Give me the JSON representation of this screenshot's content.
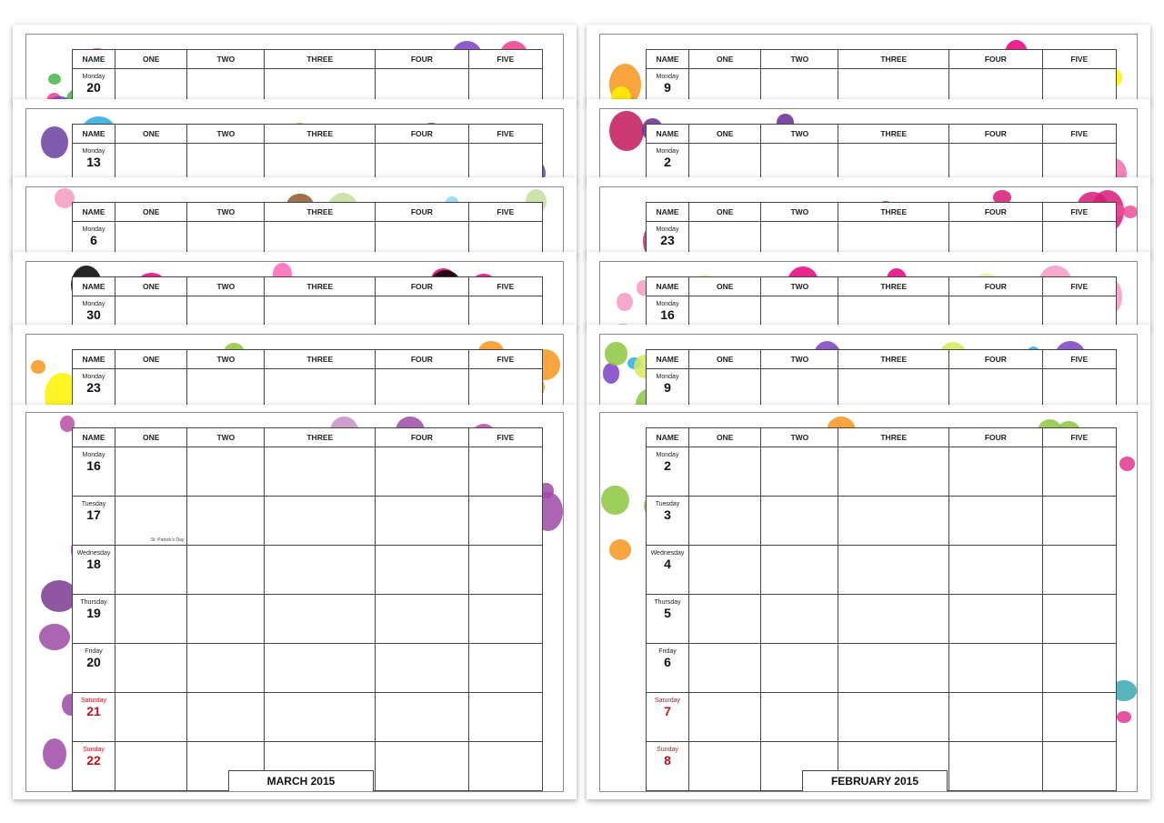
{
  "columns": [
    "NAME",
    "ONE",
    "TWO",
    "THREE",
    "FOUR",
    "FIVE"
  ],
  "left_stack": {
    "back_sheets": [
      {
        "theme": "stars",
        "day_name": "Monday",
        "day_num": "20",
        "colors": [
          "#ee3b8f",
          "#f7c21d",
          "#7c3fc4",
          "#46b649",
          "#f57e20"
        ]
      },
      {
        "theme": "bubbles",
        "day_name": "Monday",
        "day_num": "13",
        "colors": [
          "#6b3fa0",
          "#f7941d",
          "#8dc63f",
          "#29abe2",
          "#e2368f"
        ]
      },
      {
        "theme": "zigzag",
        "day_name": "Monday",
        "day_num": "6",
        "colors": [
          "#f49ac1",
          "#8ed8f8",
          "#fff200",
          "#8b5a2b",
          "#c4df9b"
        ]
      },
      {
        "theme": "leopard",
        "day_name": "Monday",
        "day_num": "30",
        "colors": [
          "#e6007e",
          "#000000",
          "#ff66b3"
        ]
      },
      {
        "theme": "citrus",
        "day_name": "Monday",
        "day_num": "23",
        "colors": [
          "#f7941d",
          "#fff200",
          "#8dc63f",
          "#f06eaa"
        ]
      }
    ],
    "front": {
      "month_label": "MARCH 2015",
      "colors": [
        "#9e4aa6",
        "#c58ec7",
        "#b94ea5",
        "#7a3b8f"
      ],
      "days": [
        {
          "name": "Monday",
          "num": "16",
          "weekend": false,
          "note": ""
        },
        {
          "name": "Tuesday",
          "num": "17",
          "weekend": false,
          "note": "St. Patrick's Day"
        },
        {
          "name": "Wednesday",
          "num": "18",
          "weekend": false,
          "note": ""
        },
        {
          "name": "Thursday",
          "num": "19",
          "weekend": false,
          "note": ""
        },
        {
          "name": "Friday",
          "num": "20",
          "weekend": false,
          "note": ""
        },
        {
          "name": "Saturday",
          "num": "21",
          "weekend": true,
          "note": ""
        },
        {
          "name": "Sunday",
          "num": "22",
          "weekend": true,
          "note": ""
        }
      ]
    }
  },
  "right_stack": {
    "back_sheets": [
      {
        "theme": "flowers",
        "day_name": "Monday",
        "day_num": "9",
        "colors": [
          "#e6007e",
          "#f7941d",
          "#fff200",
          "#662d91"
        ]
      },
      {
        "theme": "stripes",
        "day_name": "Monday",
        "day_num": "2",
        "colors": [
          "#f06eaa",
          "#662d91",
          "#c2185b",
          "#8b3a62"
        ]
      },
      {
        "theme": "pink-flowers",
        "day_name": "Monday",
        "day_num": "23",
        "colors": [
          "#ec4b9a",
          "#f8a5c9",
          "#d81b7a"
        ]
      },
      {
        "theme": "dots",
        "day_name": "Monday",
        "day_num": "16",
        "colors": [
          "#e9ef9c",
          "#e6007e",
          "#f49ac1",
          "#8b5e99"
        ]
      },
      {
        "theme": "waves",
        "day_name": "Monday",
        "day_num": "9",
        "colors": [
          "#8dc63f",
          "#29abe2",
          "#7c3fc4",
          "#d8e85a"
        ]
      }
    ],
    "front": {
      "month_label": "FEBRUARY 2015",
      "colors": [
        "#e2368f",
        "#f7c21d",
        "#3aa8b2",
        "#8dc63f",
        "#8e5a9a",
        "#e84b2d",
        "#f7941d"
      ],
      "days": [
        {
          "name": "Monday",
          "num": "2",
          "weekend": false,
          "note": ""
        },
        {
          "name": "Tuesday",
          "num": "3",
          "weekend": false,
          "note": ""
        },
        {
          "name": "Wednesday",
          "num": "4",
          "weekend": false,
          "note": ""
        },
        {
          "name": "Thursday",
          "num": "5",
          "weekend": false,
          "note": ""
        },
        {
          "name": "Friday",
          "num": "6",
          "weekend": false,
          "note": ""
        },
        {
          "name": "Saturday",
          "num": "7",
          "weekend": true,
          "note": ""
        },
        {
          "name": "Sunday",
          "num": "8",
          "weekend": true,
          "note": ""
        }
      ]
    }
  }
}
